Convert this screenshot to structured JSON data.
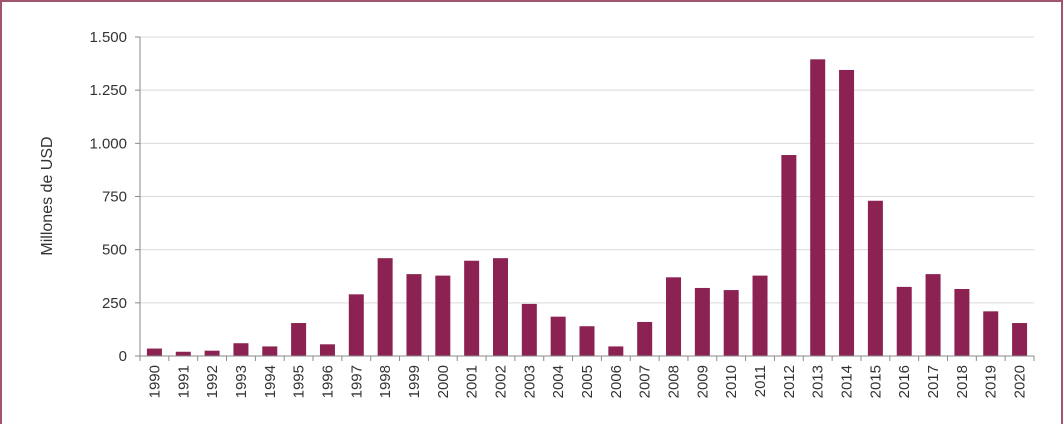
{
  "chart_data": {
    "type": "bar",
    "ylabel": "Millones de USD",
    "xlabel": "",
    "title": "",
    "ylim": [
      0,
      1500
    ],
    "yticks": [
      {
        "value": 0,
        "label": "0"
      },
      {
        "value": 250,
        "label": "250"
      },
      {
        "value": 500,
        "label": "500"
      },
      {
        "value": 750,
        "label": "750"
      },
      {
        "value": 1000,
        "label": "1.000"
      },
      {
        "value": 1250,
        "label": "1.250"
      },
      {
        "value": 1500,
        "label": "1.500"
      }
    ],
    "categories": [
      "1990",
      "1991",
      "1992",
      "1993",
      "1994",
      "1995",
      "1996",
      "1997",
      "1998",
      "1999",
      "2000",
      "2001",
      "2002",
      "2003",
      "2004",
      "2005",
      "2006",
      "2007",
      "2008",
      "2009",
      "2010",
      "2011",
      "2012",
      "2013",
      "2014",
      "2015",
      "2016",
      "2017",
      "2018",
      "2019",
      "2020"
    ],
    "values": [
      35,
      20,
      25,
      60,
      45,
      155,
      55,
      290,
      460,
      385,
      378,
      448,
      460,
      245,
      185,
      140,
      45,
      160,
      370,
      320,
      310,
      378,
      945,
      1395,
      1345,
      730,
      325,
      385,
      315,
      210,
      155
    ],
    "bar_color": "#8b2252",
    "grid": true,
    "legend": "none"
  }
}
